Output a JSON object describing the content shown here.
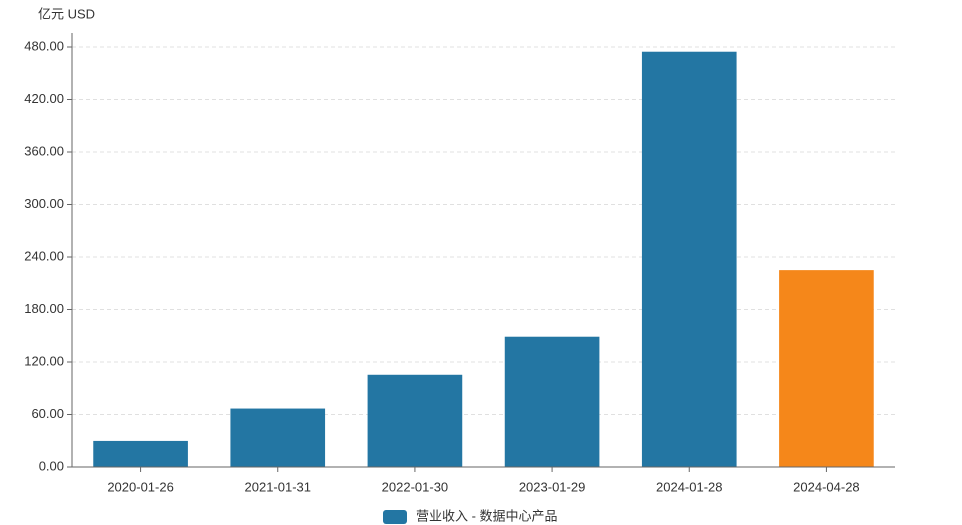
{
  "chart_data": {
    "type": "bar",
    "y_axis_label": "亿元  USD",
    "categories": [
      "2020-01-26",
      "2021-01-31",
      "2022-01-30",
      "2023-01-29",
      "2024-01-28",
      "2024-04-28"
    ],
    "series": [
      {
        "name": "营业收入 - 数据中心产品",
        "color": "#2376a3",
        "values": [
          29.8,
          66.8,
          105.4,
          148.9,
          474.6,
          225.0
        ],
        "colors": [
          "#2376a3",
          "#2376a3",
          "#2376a3",
          "#2376a3",
          "#2376a3",
          "#f5871a"
        ]
      }
    ],
    "ylim": [
      0,
      496
    ],
    "yticks": [
      {
        "value": 0,
        "label": "0.00"
      },
      {
        "value": 60,
        "label": "60.00"
      },
      {
        "value": 120,
        "label": "120.00"
      },
      {
        "value": 180,
        "label": "180.00"
      },
      {
        "value": 240,
        "label": "240.00"
      },
      {
        "value": 300,
        "label": "300.00"
      },
      {
        "value": 360,
        "label": "360.00"
      },
      {
        "value": 420,
        "label": "420.00"
      },
      {
        "value": 480,
        "label": "480.00"
      }
    ],
    "grid": true,
    "legend": "bottom"
  }
}
